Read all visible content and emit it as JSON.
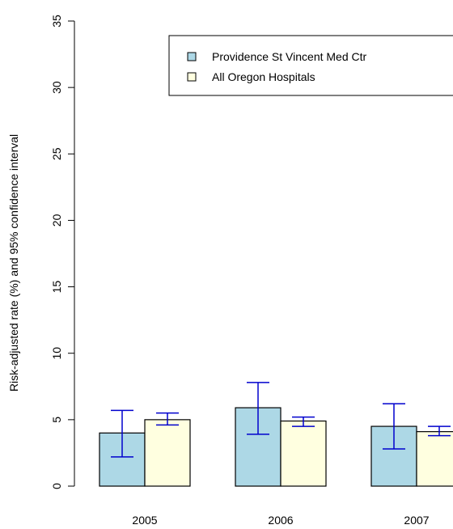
{
  "chart_data": {
    "type": "bar",
    "title": "",
    "xlabel": "",
    "ylabel": "Risk-adjusted rate (%) and 95% confidence interval",
    "ylim": [
      0,
      35
    ],
    "yticks": [
      "0",
      "5",
      "10",
      "15",
      "20",
      "25",
      "30",
      "35"
    ],
    "grid": false,
    "legend_position": "top-right",
    "categories": [
      "2005",
      "2006",
      "2007"
    ],
    "series": [
      {
        "name": "Providence St Vincent Med Ctr",
        "color": "#add8e6",
        "values": [
          4.0,
          5.9,
          4.5
        ],
        "ci_low": [
          2.2,
          3.9,
          2.8
        ],
        "ci_high": [
          5.7,
          7.8,
          6.2
        ]
      },
      {
        "name": "All Oregon Hospitals",
        "color": "#ffffe0",
        "values": [
          5.0,
          4.9,
          4.1
        ],
        "ci_low": [
          4.6,
          4.5,
          3.8
        ],
        "ci_high": [
          5.5,
          5.2,
          4.5
        ]
      }
    ],
    "error_bar_color": "#0000cd"
  }
}
